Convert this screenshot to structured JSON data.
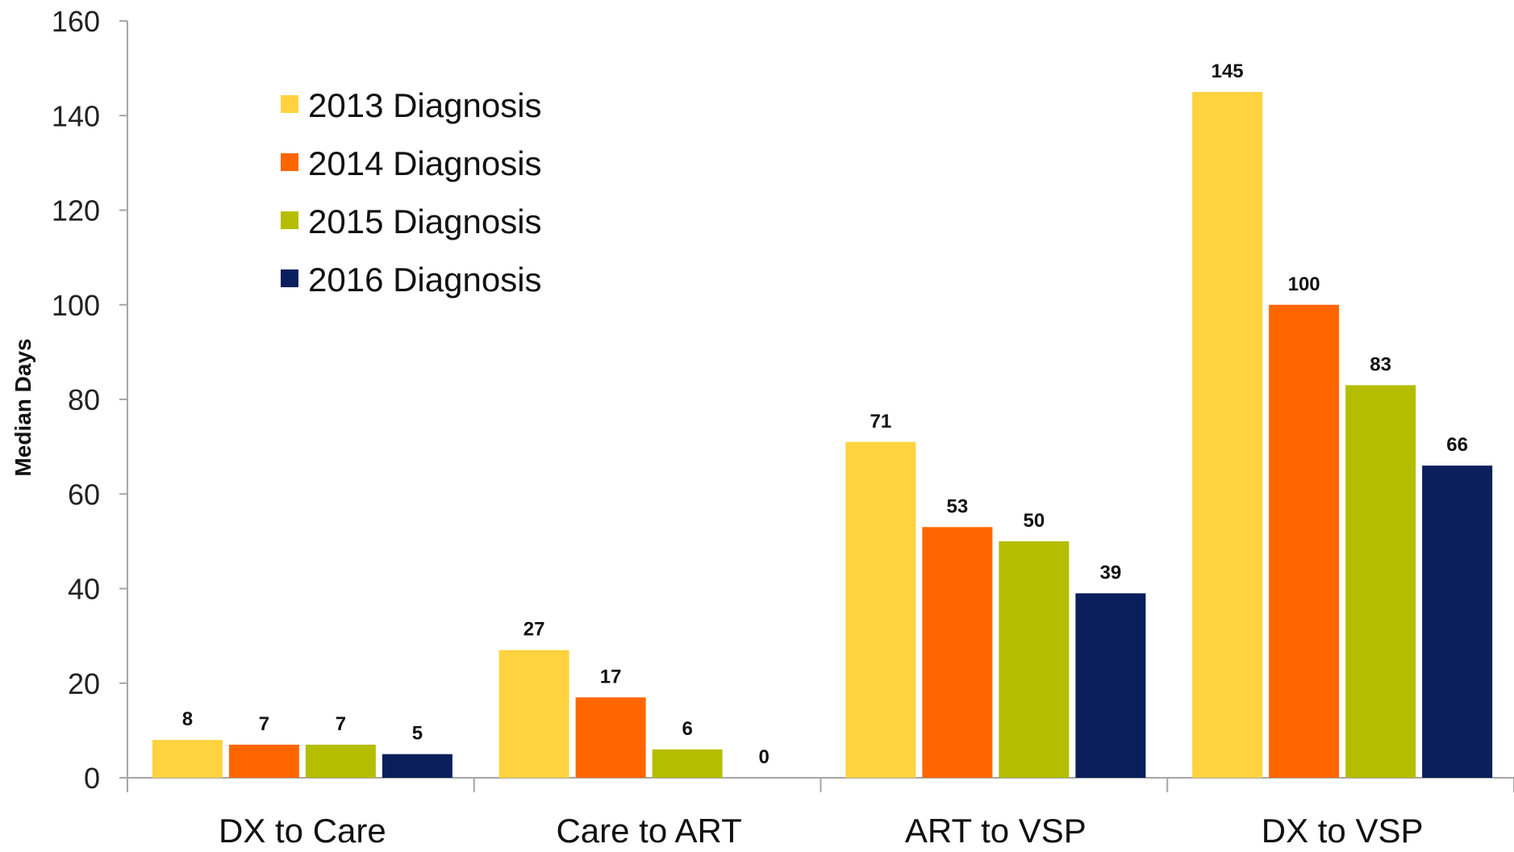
{
  "chart_data": {
    "type": "bar",
    "title": "",
    "xlabel": "",
    "ylabel": "Median Days",
    "ylim": [
      0,
      160
    ],
    "yticks": [
      0,
      20,
      40,
      60,
      80,
      100,
      120,
      140,
      160
    ],
    "categories": [
      "DX to Care",
      "Care to ART",
      "ART to VSP",
      "DX to VSP"
    ],
    "series": [
      {
        "name": "2013 Diagnosis",
        "color": "#FFD23F",
        "values": [
          8,
          27,
          71,
          145
        ]
      },
      {
        "name": "2014 Diagnosis",
        "color": "#FF6600",
        "values": [
          7,
          17,
          53,
          100
        ]
      },
      {
        "name": "2015 Diagnosis",
        "color": "#B5BD00",
        "values": [
          7,
          6,
          50,
          83
        ]
      },
      {
        "name": "2016 Diagnosis",
        "color": "#0A1F5C",
        "values": [
          5,
          0,
          39,
          66
        ]
      }
    ],
    "legend_position": "top-left",
    "grid": false,
    "data_labels": true
  }
}
